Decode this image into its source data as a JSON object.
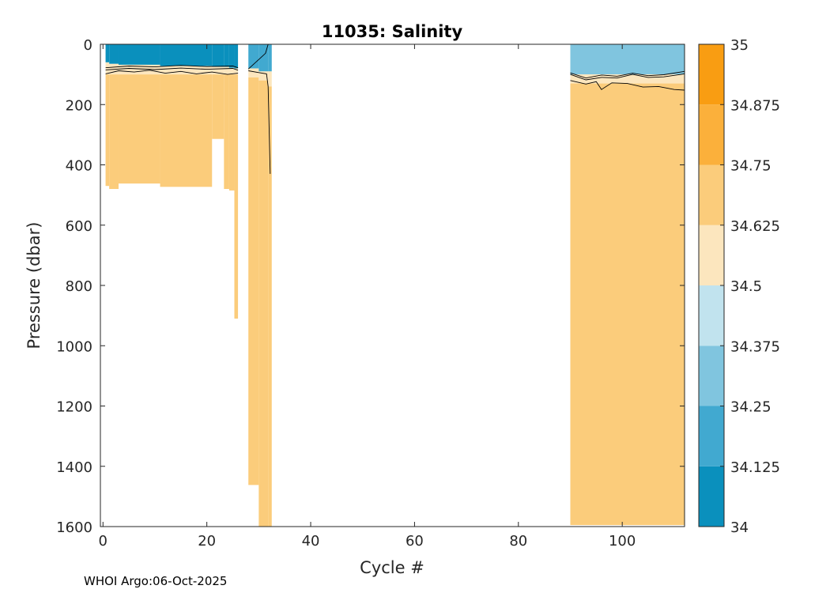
{
  "chart_data": {
    "type": "heatmap",
    "title": "11035:  Salinity",
    "xlabel": "Cycle #",
    "ylabel": "Pressure (dbar)",
    "xlim": [
      -0.5,
      112
    ],
    "ylim": [
      0,
      1600
    ],
    "y_reversed": true,
    "xticks": [
      0,
      20,
      40,
      60,
      80,
      100
    ],
    "yticks": [
      0,
      200,
      400,
      600,
      800,
      1000,
      1200,
      1400,
      1600
    ],
    "colorbar": {
      "range": [
        34,
        35
      ],
      "tick_labels": [
        "34",
        "34.125",
        "34.25",
        "34.375",
        "34.5",
        "34.625",
        "34.75",
        "34.875",
        "35"
      ],
      "levels": [
        {
          "from": 34.0,
          "to": 34.125,
          "color": "#0a90bd"
        },
        {
          "from": 34.125,
          "to": 34.25,
          "color": "#41a9d0"
        },
        {
          "from": 34.25,
          "to": 34.375,
          "color": "#80c5df"
        },
        {
          "from": 34.375,
          "to": 34.5,
          "color": "#c1e3ee"
        },
        {
          "from": 34.5,
          "to": 34.625,
          "color": "#fce6be"
        },
        {
          "from": 34.625,
          "to": 34.75,
          "color": "#fbcc7b"
        },
        {
          "from": 34.75,
          "to": 34.875,
          "color": "#fbb03b"
        },
        {
          "from": 34.875,
          "to": 35.0,
          "color": "#f99d12"
        }
      ]
    },
    "blocks": [
      {
        "x0": 0.5,
        "x1": 1.2,
        "surface_level": 0,
        "mixed_depth": 60,
        "transition_depth": 100,
        "max_depth": 470
      },
      {
        "x0": 1.2,
        "x1": 3.0,
        "surface_level": 0,
        "mixed_depth": 65,
        "transition_depth": 100,
        "max_depth": 480
      },
      {
        "x0": 3.0,
        "x1": 11.0,
        "surface_level": 0,
        "mixed_depth": 68,
        "transition_depth": 100,
        "max_depth": 462
      },
      {
        "x0": 11.0,
        "x1": 21.0,
        "surface_level": 0,
        "mixed_depth": 72,
        "transition_depth": 100,
        "max_depth": 473
      },
      {
        "x0": 21.0,
        "x1": 23.3,
        "surface_level": 0,
        "mixed_depth": 75,
        "transition_depth": 100,
        "max_depth": 314
      },
      {
        "x0": 23.3,
        "x1": 24.3,
        "surface_level": 0,
        "mixed_depth": 75,
        "transition_depth": 100,
        "max_depth": 480
      },
      {
        "x0": 24.3,
        "x1": 25.3,
        "surface_level": 0,
        "mixed_depth": 78,
        "transition_depth": 100,
        "max_depth": 485
      },
      {
        "x0": 25.3,
        "x1": 26.0,
        "surface_level": 0,
        "mixed_depth": 80,
        "transition_depth": 100,
        "max_depth": 910
      },
      {
        "x0": 28.0,
        "x1": 30.0,
        "surface_level": 1,
        "mixed_depth": 80,
        "transition_depth": 110,
        "max_depth": 1462
      },
      {
        "x0": 30.0,
        "x1": 31.8,
        "surface_level": 1,
        "mixed_depth": 90,
        "transition_depth": 120,
        "max_depth": 1600
      },
      {
        "x0": 31.8,
        "x1": 32.5,
        "surface_level": 1,
        "mixed_depth": 90,
        "transition_depth": 140,
        "max_depth": 1600
      },
      {
        "x0": 90.0,
        "x1": 112.0,
        "surface_level": 2,
        "mixed_depth": 100,
        "transition_depth": 130,
        "max_depth": 1595
      }
    ],
    "contours": [
      {
        "x": [
          0.5,
          5,
          10,
          15,
          20,
          25,
          26
        ],
        "y": [
          78,
          72,
          75,
          70,
          74,
          72,
          78
        ]
      },
      {
        "x": [
          0.5,
          5,
          10,
          15,
          20,
          25,
          26
        ],
        "y": [
          85,
          80,
          84,
          79,
          83,
          80,
          86
        ]
      },
      {
        "x": [
          0.5,
          3,
          6,
          9,
          12,
          15,
          18,
          21,
          24,
          26
        ],
        "y": [
          98,
          88,
          92,
          86,
          96,
          90,
          98,
          92,
          100,
          96
        ]
      },
      {
        "x": [
          28,
          30,
          31.5,
          31.8,
          32.2
        ],
        "y": [
          88,
          94,
          98,
          140,
          430
        ]
      },
      {
        "x": [
          28,
          31.3,
          31.8
        ],
        "y": [
          82,
          30,
          0
        ]
      },
      {
        "x": [
          90,
          93,
          96,
          99,
          102,
          105,
          108,
          112
        ],
        "y": [
          95,
          112,
          102,
          106,
          96,
          104,
          101,
          90
        ]
      },
      {
        "x": [
          90,
          93,
          96,
          99,
          102,
          105,
          108,
          112
        ],
        "y": [
          100,
          118,
          110,
          112,
          100,
          110,
          108,
          98
        ]
      },
      {
        "x": [
          90,
          93,
          95,
          96,
          98,
          101,
          104,
          107,
          110,
          112
        ],
        "y": [
          120,
          132,
          124,
          150,
          128,
          130,
          142,
          140,
          150,
          152
        ]
      }
    ]
  },
  "footer": "WHOI Argo:06-Oct-2025"
}
